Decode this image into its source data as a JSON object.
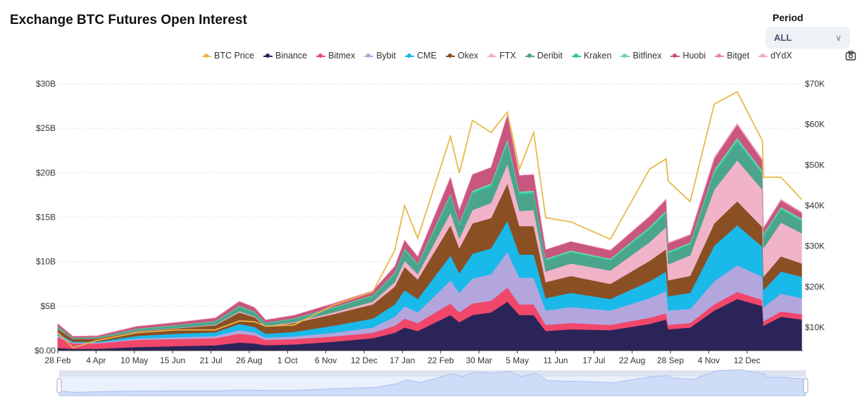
{
  "title": "Exchange BTC Futures Open Interest",
  "period": {
    "label": "Period",
    "value": "ALL"
  },
  "chart_data": {
    "type": "area",
    "stacked": true,
    "title": "Exchange BTC Futures Open Interest",
    "legend_position": "top",
    "grid": true,
    "y_left": {
      "range": [
        0,
        30
      ],
      "unit": "$B",
      "tick_labels": [
        "$0.00",
        "$5B",
        "$10B",
        "$15B",
        "$20B",
        "$25B",
        "$30B"
      ],
      "tick_values": [
        0,
        5,
        10,
        15,
        20,
        25,
        30
      ]
    },
    "y_right": {
      "range": [
        4300,
        70000
      ],
      "tick_labels": [
        "$10K",
        "$20K",
        "$30K",
        "$40K",
        "$50K",
        "$60K",
        "$70K"
      ],
      "tick_values": [
        10000,
        20000,
        30000,
        40000,
        50000,
        60000,
        70000
      ]
    },
    "x_range": [
      "2020-02-28",
      "2022-01-09"
    ],
    "x_ticks": [
      {
        "date": "2020-02-28",
        "label": "28 Feb"
      },
      {
        "date": "2020-04-03",
        "label": "4 Apr"
      },
      {
        "date": "2020-05-08",
        "label": "10 May"
      },
      {
        "date": "2020-06-12",
        "label": "15 Jun"
      },
      {
        "date": "2020-07-17",
        "label": "21 Jul"
      },
      {
        "date": "2020-08-21",
        "label": "26 Aug"
      },
      {
        "date": "2020-09-25",
        "label": "1 Oct"
      },
      {
        "date": "2020-10-30",
        "label": "6 Nov"
      },
      {
        "date": "2020-12-04",
        "label": "12 Dec"
      },
      {
        "date": "2021-01-08",
        "label": "17 Jan"
      },
      {
        "date": "2021-02-12",
        "label": "22 Feb"
      },
      {
        "date": "2021-03-19",
        "label": "30 Mar"
      },
      {
        "date": "2021-04-23",
        "label": "5 May"
      },
      {
        "date": "2021-05-28",
        "label": "11 Jun"
      },
      {
        "date": "2021-07-02",
        "label": "17 Jul"
      },
      {
        "date": "2021-08-06",
        "label": "22 Aug"
      },
      {
        "date": "2021-09-10",
        "label": "28 Sep"
      },
      {
        "date": "2021-10-15",
        "label": "4 Nov"
      },
      {
        "date": "2021-11-19",
        "label": "12 Dec"
      }
    ],
    "dates": [
      "2020-02-28",
      "2020-03-13",
      "2020-04-04",
      "2020-05-10",
      "2020-06-15",
      "2020-07-21",
      "2020-08-12",
      "2020-08-26",
      "2020-09-05",
      "2020-10-01",
      "2020-11-06",
      "2020-12-12",
      "2021-01-01",
      "2021-01-10",
      "2021-01-22",
      "2021-02-21",
      "2021-03-01",
      "2021-03-13",
      "2021-03-30",
      "2021-04-14",
      "2021-04-25",
      "2021-05-08",
      "2021-05-19",
      "2021-06-11",
      "2021-07-17",
      "2021-08-22",
      "2021-09-06",
      "2021-09-08",
      "2021-09-28",
      "2021-10-20",
      "2021-11-10",
      "2021-12-03",
      "2021-12-04",
      "2021-12-20",
      "2022-01-08"
    ],
    "series": [
      {
        "name": "Binance",
        "color": "#2b2459",
        "values": [
          0.3,
          0.2,
          0.2,
          0.4,
          0.5,
          0.6,
          0.9,
          0.8,
          0.6,
          0.7,
          1.0,
          1.4,
          2.0,
          2.6,
          2.2,
          4.0,
          3.2,
          4.0,
          4.3,
          5.5,
          4.0,
          4.0,
          2.2,
          2.4,
          2.3,
          3.0,
          3.5,
          2.4,
          2.6,
          4.5,
          5.8,
          5.0,
          2.8,
          3.8,
          3.5
        ]
      },
      {
        "name": "Bitmex",
        "color": "#f0476b",
        "values": [
          1.2,
          0.6,
          0.6,
          0.8,
          0.8,
          0.8,
          1.0,
          0.9,
          0.6,
          0.6,
          0.6,
          0.6,
          0.8,
          1.0,
          0.9,
          1.3,
          1.1,
          1.3,
          1.3,
          1.6,
          1.2,
          1.2,
          0.7,
          0.7,
          0.6,
          0.7,
          0.7,
          0.5,
          0.5,
          0.7,
          0.8,
          0.7,
          0.5,
          0.6,
          0.6
        ]
      },
      {
        "name": "Bybit",
        "color": "#b3a6dd",
        "values": [
          0.2,
          0.1,
          0.1,
          0.15,
          0.2,
          0.25,
          0.4,
          0.35,
          0.25,
          0.3,
          0.4,
          0.6,
          1.0,
          1.4,
          1.2,
          2.6,
          2.2,
          2.8,
          3.0,
          4.0,
          3.0,
          3.0,
          1.6,
          1.8,
          1.6,
          2.2,
          2.5,
          1.6,
          1.6,
          2.6,
          3.0,
          2.6,
          1.6,
          2.0,
          1.8
        ]
      },
      {
        "name": "CME",
        "color": "#19b9ea",
        "values": [
          0.2,
          0.1,
          0.1,
          0.3,
          0.4,
          0.4,
          0.7,
          0.6,
          0.45,
          0.5,
          0.8,
          1.0,
          1.4,
          1.8,
          1.5,
          2.8,
          2.2,
          2.8,
          2.9,
          3.5,
          2.6,
          2.6,
          1.4,
          1.6,
          1.3,
          1.9,
          2.2,
          1.6,
          1.8,
          4.0,
          4.5,
          3.4,
          1.9,
          2.5,
          2.4
        ]
      },
      {
        "name": "Okex",
        "color": "#8b4f24",
        "values": [
          0.5,
          0.3,
          0.35,
          0.5,
          0.6,
          0.8,
          1.3,
          1.1,
          0.8,
          1.0,
          1.3,
          1.6,
          2.0,
          2.6,
          2.2,
          3.4,
          2.8,
          3.4,
          3.4,
          4.2,
          3.2,
          3.2,
          1.8,
          1.9,
          1.7,
          2.3,
          2.5,
          1.8,
          1.9,
          2.5,
          2.7,
          2.2,
          1.5,
          1.7,
          1.5
        ]
      },
      {
        "name": "FTX",
        "color": "#f0b3c8",
        "values": [
          0.05,
          0.02,
          0.03,
          0.05,
          0.05,
          0.08,
          0.12,
          0.1,
          0.08,
          0.1,
          0.2,
          0.3,
          0.5,
          0.7,
          0.6,
          1.4,
          1.1,
          1.5,
          1.7,
          2.2,
          1.7,
          1.8,
          1.2,
          1.4,
          1.5,
          2.1,
          2.5,
          1.8,
          2.3,
          3.8,
          4.6,
          4.2,
          3.2,
          3.8,
          3.4
        ]
      },
      {
        "name": "Deribit",
        "color": "#4aa58c",
        "values": [
          0.2,
          0.1,
          0.1,
          0.2,
          0.25,
          0.3,
          0.5,
          0.45,
          0.3,
          0.35,
          0.5,
          0.6,
          0.9,
          1.2,
          1.0,
          1.8,
          1.5,
          1.8,
          1.8,
          2.2,
          1.8,
          1.8,
          1.2,
          1.2,
          1.1,
          1.4,
          1.5,
          1.2,
          1.2,
          1.8,
          2.0,
          1.7,
          1.3,
          1.4,
          1.3
        ]
      },
      {
        "name": "Kraken",
        "color": "#2cc0a8",
        "values": [
          0.02,
          0.01,
          0.01,
          0.02,
          0.02,
          0.03,
          0.04,
          0.03,
          0.02,
          0.03,
          0.04,
          0.05,
          0.08,
          0.1,
          0.08,
          0.2,
          0.15,
          0.2,
          0.2,
          0.3,
          0.2,
          0.2,
          0.1,
          0.12,
          0.1,
          0.15,
          0.15,
          0.1,
          0.12,
          0.2,
          0.25,
          0.2,
          0.15,
          0.18,
          0.15
        ]
      },
      {
        "name": "Bitfinex",
        "color": "#6fd39a",
        "values": [
          0.05,
          0.03,
          0.03,
          0.05,
          0.05,
          0.06,
          0.08,
          0.07,
          0.05,
          0.05,
          0.06,
          0.08,
          0.1,
          0.12,
          0.1,
          0.2,
          0.15,
          0.2,
          0.2,
          0.3,
          0.2,
          0.2,
          0.15,
          0.15,
          0.15,
          0.2,
          0.2,
          0.15,
          0.15,
          0.25,
          0.3,
          0.25,
          0.2,
          0.2,
          0.2
        ]
      },
      {
        "name": "Huobi",
        "color": "#c8567f",
        "values": [
          0.3,
          0.15,
          0.15,
          0.25,
          0.3,
          0.35,
          0.5,
          0.45,
          0.3,
          0.35,
          0.4,
          0.5,
          0.7,
          0.9,
          0.8,
          1.8,
          1.4,
          1.8,
          1.8,
          2.7,
          1.8,
          1.8,
          1.0,
          1.0,
          0.9,
          1.1,
          1.2,
          0.9,
          0.8,
          1.2,
          1.4,
          1.1,
          0.6,
          0.7,
          0.6
        ]
      },
      {
        "name": "Bitget",
        "color": "#f08aa8",
        "values": [
          0,
          0,
          0,
          0,
          0,
          0,
          0,
          0,
          0,
          0,
          0,
          0,
          0,
          0,
          0,
          0,
          0,
          0,
          0,
          0,
          0,
          0,
          0,
          0,
          0.05,
          0.08,
          0.1,
          0.08,
          0.08,
          0.12,
          0.15,
          0.12,
          0.1,
          0.1,
          0.1
        ]
      },
      {
        "name": "dYdX",
        "color": "#f4a9cc",
        "values": [
          0,
          0,
          0,
          0,
          0,
          0,
          0,
          0,
          0,
          0,
          0,
          0,
          0,
          0,
          0,
          0,
          0,
          0,
          0,
          0,
          0,
          0,
          0,
          0,
          0,
          0,
          0.03,
          0.02,
          0.03,
          0.05,
          0.06,
          0.05,
          0.04,
          0.04,
          0.04
        ]
      }
    ],
    "price_series": {
      "name": "BTC Price",
      "color": "#e8b84a",
      "values": [
        8700,
        5000,
        6800,
        8700,
        9400,
        9400,
        11600,
        11400,
        10300,
        10600,
        15500,
        18800,
        29000,
        40000,
        32000,
        57000,
        48000,
        61000,
        58000,
        63000,
        49000,
        58000,
        37000,
        36000,
        31700,
        49000,
        51500,
        46000,
        41000,
        65000,
        68000,
        56000,
        47000,
        47000,
        41500
      ]
    }
  }
}
